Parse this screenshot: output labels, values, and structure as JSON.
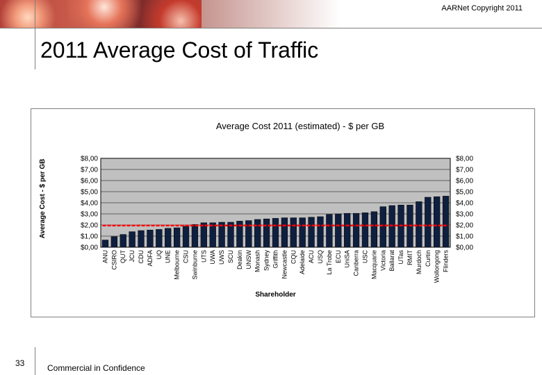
{
  "header": {
    "copyright": "AARNet Copyright 2011",
    "title": "2011 Average Cost of Traffic"
  },
  "footer": {
    "slide_number": "33",
    "confidentiality": "Commercial in Confidence"
  },
  "colors": {
    "bar": "#0f1f3f",
    "plot_bg": "#c0c0c0",
    "avg_line": "#ff0000"
  },
  "chart_data": {
    "type": "bar",
    "title": "Average Cost 2011 (estimated) - $ per GB",
    "xlabel": "Shareholder",
    "ylabel": "Average Cost - $ per GB",
    "ylim": [
      0,
      8
    ],
    "yticks": [
      "$0,00",
      "$1,00",
      "$2,00",
      "$3,00",
      "$4,00",
      "$5,00",
      "$6,00",
      "$7,00",
      "$8,00"
    ],
    "grid": true,
    "reference_line": 1.95,
    "categories": [
      "ANU",
      "CSIRO",
      "QUT",
      "JCU",
      "CDU",
      "ADFA",
      "UQ",
      "UNE",
      "Melbourne",
      "CSU",
      "Swinburne",
      "UTS",
      "UWA",
      "UWS",
      "SCU",
      "Deakin",
      "UNSW",
      "Monash",
      "Sydney",
      "Griffith",
      "Newcastle",
      "CQU",
      "Adelaide",
      "ACU",
      "USQ",
      "La Trobe",
      "ECU",
      "UniSA",
      "Canberra",
      "USC",
      "Macquarie",
      "Victoria",
      "Ballarat",
      "UTas",
      "RMIT",
      "Murdoch",
      "Curtin",
      "Wollongong",
      "Flinders"
    ],
    "values": [
      0.65,
      0.95,
      1.15,
      1.4,
      1.5,
      1.55,
      1.6,
      1.7,
      1.75,
      1.9,
      2.05,
      2.2,
      2.2,
      2.25,
      2.25,
      2.35,
      2.4,
      2.5,
      2.55,
      2.6,
      2.65,
      2.65,
      2.65,
      2.7,
      2.75,
      2.95,
      3.0,
      3.05,
      3.05,
      3.1,
      3.2,
      3.65,
      3.75,
      3.8,
      3.8,
      4.1,
      4.5,
      4.55,
      4.6
    ]
  }
}
